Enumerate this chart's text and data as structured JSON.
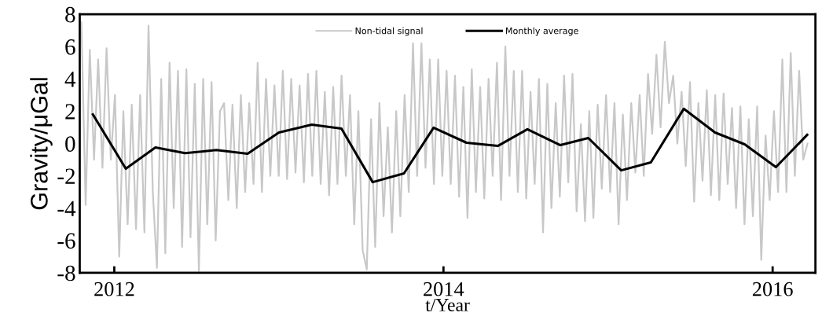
{
  "chart_data": {
    "type": "line",
    "xlabel": "t/Year",
    "ylabel": "Gravity/μGal",
    "xlim": [
      2011.79,
      2016.26
    ],
    "xticks": [
      2012,
      2014,
      2016
    ],
    "ylim": [
      -8,
      8
    ],
    "yticks": [
      -8,
      -6,
      -4,
      -2,
      0,
      2,
      4,
      6,
      8
    ],
    "grid": false,
    "legend": "top",
    "marker": "none",
    "line_style": "solid",
    "series": [
      {
        "name": "Non-tidal signal",
        "color": "#c8c8c8",
        "x": [
          2011.8,
          2011.826,
          2011.851,
          2011.877,
          2011.902,
          2011.928,
          2011.953,
          2011.979,
          2012.004,
          2012.03,
          2012.055,
          2012.081,
          2012.106,
          2012.132,
          2012.157,
          2012.183,
          2012.208,
          2012.234,
          2012.259,
          2012.285,
          2012.31,
          2012.336,
          2012.361,
          2012.387,
          2012.412,
          2012.438,
          2012.463,
          2012.489,
          2012.514,
          2012.54,
          2012.565,
          2012.591,
          2012.616,
          2012.642,
          2012.667,
          2012.693,
          2012.718,
          2012.744,
          2012.769,
          2012.795,
          2012.82,
          2012.846,
          2012.871,
          2012.897,
          2012.922,
          2012.948,
          2012.973,
          2012.999,
          2013.024,
          2013.05,
          2013.075,
          2013.101,
          2013.126,
          2013.152,
          2013.177,
          2013.203,
          2013.228,
          2013.254,
          2013.279,
          2013.305,
          2013.33,
          2013.356,
          2013.381,
          2013.407,
          2013.432,
          2013.458,
          2013.483,
          2013.509,
          2013.534,
          2013.56,
          2013.585,
          2013.611,
          2013.636,
          2013.662,
          2013.687,
          2013.713,
          2013.738,
          2013.764,
          2013.789,
          2013.815,
          2013.84,
          2013.866,
          2013.891,
          2013.917,
          2013.942,
          2013.968,
          2013.993,
          2014.019,
          2014.044,
          2014.07,
          2014.095,
          2014.121,
          2014.146,
          2014.172,
          2014.197,
          2014.223,
          2014.248,
          2014.274,
          2014.299,
          2014.325,
          2014.35,
          2014.376,
          2014.401,
          2014.427,
          2014.452,
          2014.478,
          2014.503,
          2014.529,
          2014.554,
          2014.58,
          2014.605,
          2014.631,
          2014.656,
          2014.682,
          2014.707,
          2014.733,
          2014.758,
          2014.784,
          2014.809,
          2014.835,
          2014.86,
          2014.886,
          2014.911,
          2014.937,
          2014.962,
          2014.988,
          2015.013,
          2015.039,
          2015.064,
          2015.09,
          2015.115,
          2015.141,
          2015.166,
          2015.192,
          2015.217,
          2015.243,
          2015.268,
          2015.294,
          2015.319,
          2015.345,
          2015.37,
          2015.396,
          2015.421,
          2015.447,
          2015.472,
          2015.498,
          2015.523,
          2015.549,
          2015.574,
          2015.6,
          2015.625,
          2015.651,
          2015.676,
          2015.702,
          2015.727,
          2015.753,
          2015.778,
          2015.804,
          2015.829,
          2015.855,
          2015.88,
          2015.906,
          2015.931,
          2015.957,
          2015.982,
          2016.008,
          2016.033,
          2016.059,
          2016.084,
          2016.11,
          2016.135,
          2016.161,
          2016.186,
          2016.212
        ],
        "values": [
          7.5,
          -3.8,
          5.8,
          -1,
          5.2,
          -1.5,
          5.9,
          -1,
          3,
          -7,
          2,
          -5,
          2.4,
          -5.3,
          3,
          -5.5,
          7.3,
          -3,
          -7.7,
          4,
          -6.8,
          5,
          -4,
          4.5,
          -6.4,
          4.6,
          -5.8,
          3.7,
          -7.9,
          4,
          -5,
          3.8,
          -6,
          2,
          2.5,
          -3.5,
          2.4,
          -4,
          3,
          -3,
          2.5,
          -2.5,
          5,
          -3,
          4,
          -2,
          3.6,
          -2,
          4.5,
          -2.2,
          4,
          -1.8,
          3.6,
          -2.4,
          4.3,
          -2,
          4.5,
          -2.5,
          3.2,
          -3.2,
          3.5,
          -2.5,
          4.2,
          -2,
          3,
          -5,
          2,
          -6.6,
          -7.8,
          1.5,
          -6.4,
          2.5,
          -4.5,
          1,
          -5.5,
          2,
          -4.5,
          3,
          -3,
          6.2,
          -2,
          6.2,
          -1.5,
          5.2,
          -2.5,
          5.2,
          -2,
          4.5,
          -2.5,
          4.2,
          -3.3,
          3.5,
          -4.6,
          4.6,
          -3,
          3.5,
          -3.4,
          4,
          -2,
          5,
          -3.5,
          6,
          -2,
          4.5,
          -3,
          4.5,
          -3.4,
          3.2,
          -2.5,
          4,
          -5.5,
          3.7,
          -4,
          2.5,
          -3.3,
          4.2,
          -2.4,
          4.3,
          -4.2,
          1.2,
          -4.8,
          2,
          -4.6,
          2.4,
          -2.8,
          3,
          -3,
          2.5,
          -5,
          1.8,
          -3.5,
          2.5,
          -1.8,
          3,
          -2,
          4.3,
          0.6,
          5.5,
          1,
          6.3,
          2.5,
          4.2,
          0,
          3.2,
          -1.4,
          3.8,
          -3.6,
          2.5,
          -2.3,
          3.3,
          -3.2,
          3,
          -3.5,
          3.1,
          -2.5,
          2.2,
          -4,
          2.3,
          -5,
          1.5,
          -4.5,
          2.3,
          -7.2,
          0.5,
          -3.5,
          2,
          -3,
          5.2,
          -3,
          5.6,
          -2,
          4.5,
          -1,
          0
        ]
      },
      {
        "name": "Monthly average",
        "color": "#000000",
        "x": [
          2011.87,
          2012.07,
          2012.25,
          2012.43,
          2012.62,
          2012.81,
          2013.0,
          2013.2,
          2013.38,
          2013.57,
          2013.76,
          2013.94,
          2014.14,
          2014.33,
          2014.51,
          2014.71,
          2014.88,
          2015.08,
          2015.26,
          2015.46,
          2015.65,
          2015.83,
          2016.02,
          2016.21
        ],
        "values": [
          1.8,
          -1.56,
          -0.24,
          -0.6,
          -0.4,
          -0.63,
          0.68,
          1.17,
          0.93,
          -2.39,
          -1.85,
          0.98,
          0.05,
          -0.15,
          0.88,
          -0.1,
          0.34,
          -1.66,
          -1.17,
          2.15,
          0.68,
          -0.05,
          -1.46,
          0.54
        ]
      }
    ]
  }
}
